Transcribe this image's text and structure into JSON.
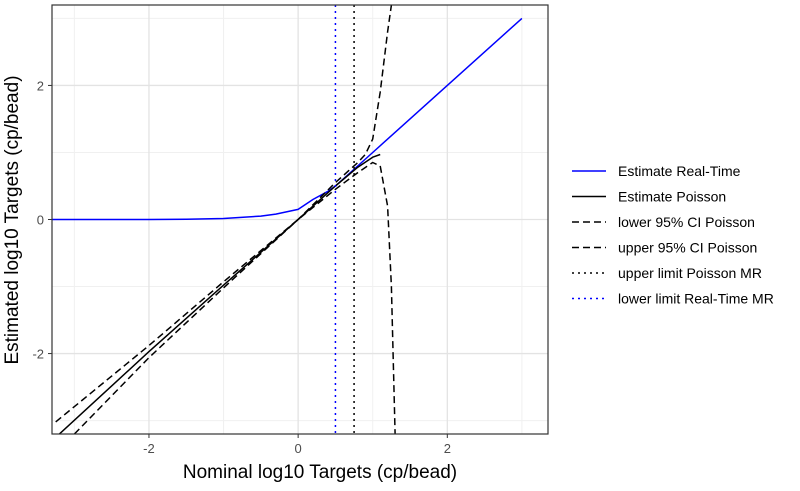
{
  "chart_data": {
    "type": "line",
    "xlabel": "Nominal log10 Targets (cp/bead)",
    "ylabel": "Estimated log10 Targets (cp/bead)",
    "xlim": [
      -3.3,
      3.35
    ],
    "ylim": [
      -3.2,
      3.2
    ],
    "x_ticks": [
      -2,
      0,
      2
    ],
    "y_ticks": [
      -2,
      0,
      2
    ],
    "grid": true,
    "legend_position": "right",
    "series": [
      {
        "name": "Estimate Real-Time",
        "color": "#0000ff",
        "dash": "solid",
        "points": [
          [
            -3.3,
            0.0
          ],
          [
            -2.0,
            0.0
          ],
          [
            -1.5,
            0.005
          ],
          [
            -1.0,
            0.015
          ],
          [
            -0.5,
            0.05
          ],
          [
            -0.3,
            0.08
          ],
          [
            0.0,
            0.15
          ],
          [
            0.2,
            0.3
          ],
          [
            0.4,
            0.42
          ],
          [
            0.5,
            0.5
          ],
          [
            1.0,
            1.0
          ],
          [
            2.0,
            2.0
          ],
          [
            3.0,
            3.0
          ]
        ]
      },
      {
        "name": "Estimate Poisson",
        "color": "#000000",
        "dash": "solid",
        "points": [
          [
            -3.25,
            -3.25
          ],
          [
            -2.0,
            -1.97
          ],
          [
            -1.0,
            -0.98
          ],
          [
            0.0,
            0.0
          ],
          [
            0.5,
            0.5
          ],
          [
            0.8,
            0.78
          ],
          [
            1.0,
            0.93
          ],
          [
            1.1,
            0.97
          ]
        ]
      },
      {
        "name": "lower 95% CI Poisson",
        "color": "#000000",
        "dash": "dashed",
        "points": [
          [
            -3.25,
            -3.02
          ],
          [
            -2.0,
            -1.88
          ],
          [
            -1.0,
            -0.93
          ],
          [
            0.0,
            0.0
          ],
          [
            0.5,
            0.45
          ],
          [
            0.8,
            0.7
          ],
          [
            1.0,
            0.85
          ],
          [
            1.1,
            0.8
          ],
          [
            1.2,
            0.2
          ],
          [
            1.25,
            -1.0
          ],
          [
            1.3,
            -3.2
          ]
        ]
      },
      {
        "name": "upper 95% CI Poisson",
        "color": "#000000",
        "dash": "dashed",
        "points": [
          [
            -3.0,
            -3.2
          ],
          [
            -2.0,
            -2.06
          ],
          [
            -1.0,
            -1.02
          ],
          [
            0.0,
            0.0
          ],
          [
            0.5,
            0.55
          ],
          [
            0.8,
            0.85
          ],
          [
            0.9,
            0.97
          ],
          [
            1.0,
            1.2
          ],
          [
            1.1,
            1.9
          ],
          [
            1.2,
            2.8
          ],
          [
            1.25,
            3.2
          ]
        ]
      },
      {
        "name": "upper limit Poisson MR",
        "color": "#000000",
        "dash": "dotted",
        "vline": 0.75
      },
      {
        "name": "lower limit Real-Time MR",
        "color": "#0000ff",
        "dash": "dotted",
        "vline": 0.5
      }
    ]
  }
}
